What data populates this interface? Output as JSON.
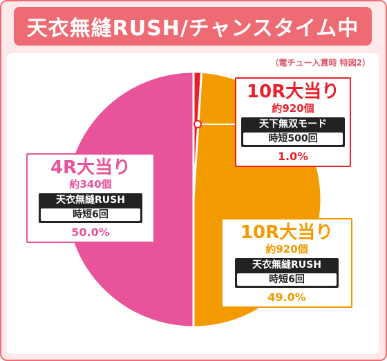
{
  "header": {
    "title": "天衣無縫RUSH/チャンスタイム中"
  },
  "note": "（電チュー入賞時 特図2）",
  "colors": {
    "border": "#ef6b74",
    "banner": "#ef6b74",
    "pink": "#e8539a",
    "orange": "#f29a00",
    "red": "#e8202a",
    "background": "#fde9ea"
  },
  "chart_data": {
    "type": "pie",
    "slices": [
      {
        "title": "4R大当り",
        "payout": "約340個",
        "mode": "天衣無縫RUSH",
        "jitan": "時短6回",
        "value": 50.0,
        "label": "50.0%",
        "color": "#e8539a"
      },
      {
        "title": "10R大当り",
        "payout": "約920個",
        "mode": "天衣無縫RUSH",
        "jitan": "時短6回",
        "value": 49.0,
        "label": "49.0%",
        "color": "#f29a00"
      },
      {
        "title": "10R大当り",
        "payout": "約920個",
        "mode": "天下無双モード",
        "jitan": "時短500回",
        "value": 1.0,
        "label": "1.0%",
        "color": "#e8202a"
      }
    ]
  }
}
